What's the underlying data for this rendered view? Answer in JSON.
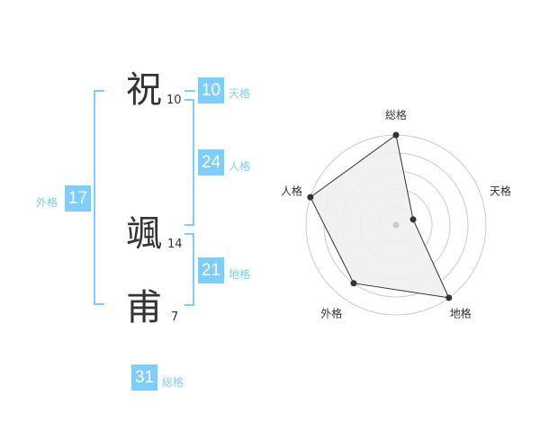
{
  "name": [
    {
      "char": "祝",
      "strokes": "10"
    },
    {
      "char": "颯",
      "strokes": "14"
    },
    {
      "char": "甫",
      "strokes": "7"
    }
  ],
  "fortunes": {
    "tenkaku": {
      "label": "天格",
      "value": "10"
    },
    "jinkaku": {
      "label": "人格",
      "value": "24"
    },
    "chikaku": {
      "label": "地格",
      "value": "21"
    },
    "gaikaku": {
      "label": "外格",
      "value": "17"
    },
    "soukaku": {
      "label": "総格",
      "value": "31"
    }
  },
  "colors": {
    "accent": "#7fcdfa",
    "fill": "#f0f0f0",
    "line": "#333333"
  },
  "chart_data": {
    "type": "radar",
    "axes": [
      "総格",
      "天格",
      "地格",
      "外格",
      "人格"
    ],
    "values": [
      5,
      1,
      5,
      4,
      5
    ],
    "range": [
      0,
      5
    ],
    "rings": 5
  }
}
